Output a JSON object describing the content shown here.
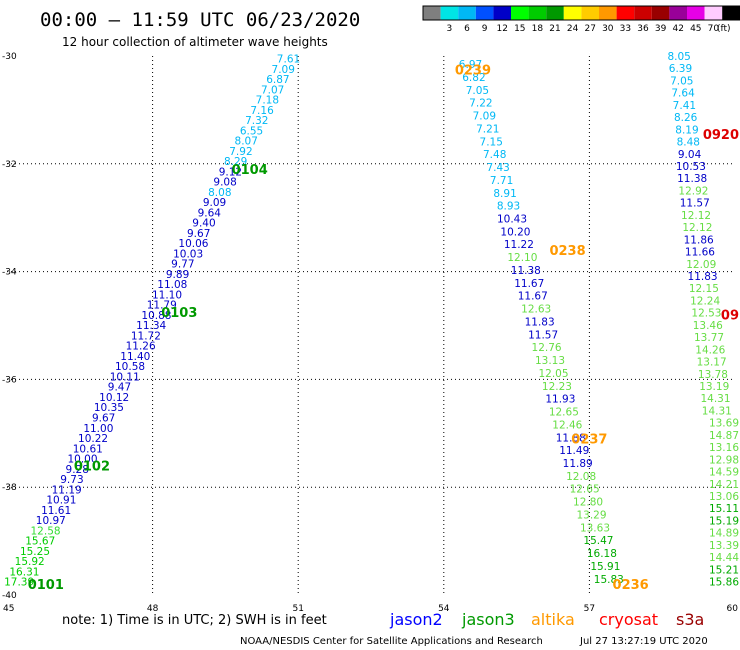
{
  "header": {
    "title": "00:00 – 11:59 UTC 06/23/2020",
    "subtitle": "12 hour collection of altimeter wave heights"
  },
  "colorbar": {
    "unit": "(ft)",
    "bins": [
      {
        "color": "#7f7f7f",
        "label": ""
      },
      {
        "color": "#00e5e5",
        "label": "3"
      },
      {
        "color": "#00b8f5",
        "label": "6"
      },
      {
        "color": "#0050ff",
        "label": "9"
      },
      {
        "color": "#0000c8",
        "label": "12"
      },
      {
        "color": "#00ff00",
        "label": "15"
      },
      {
        "color": "#00cc00",
        "label": "18"
      },
      {
        "color": "#009900",
        "label": "21"
      },
      {
        "color": "#ffff00",
        "label": "24"
      },
      {
        "color": "#ffcc00",
        "label": "27"
      },
      {
        "color": "#ff9900",
        "label": "30"
      },
      {
        "color": "#ff0000",
        "label": "33"
      },
      {
        "color": "#cc0000",
        "label": "36"
      },
      {
        "color": "#990000",
        "label": "39"
      },
      {
        "color": "#990099",
        "label": "42"
      },
      {
        "color": "#e600e6",
        "label": "45"
      },
      {
        "color": "#ffccff",
        "label": "70"
      },
      {
        "color": "#000000",
        "label": ""
      }
    ]
  },
  "legend": {
    "note": "note:  1) Time is in UTC;  2) SWH is in feet",
    "items": [
      {
        "name": "jason2",
        "color": "#0000ff"
      },
      {
        "name": "jason3",
        "color": "#009900"
      },
      {
        "name": "altika",
        "color": "#ff9900"
      },
      {
        "name": "cryosat",
        "color": "#ff0000"
      },
      {
        "name": "s3a",
        "color": "#990000"
      }
    ]
  },
  "footer": {
    "credit": "NOAA/NESDIS Center for Satellite Applications and Research",
    "timestamp": "Jul 27 13:27:19 UTC 2020"
  },
  "chart_data": {
    "type": "scatter",
    "title": "00:00 – 11:59 UTC 06/23/2020",
    "subtitle": "12 hour collection of altimeter wave heights",
    "xlabel": "",
    "ylabel": "",
    "xlim": [
      45,
      60
    ],
    "ylim": [
      -40,
      -30
    ],
    "x_ticks": [
      45,
      48,
      51,
      54,
      57,
      60
    ],
    "x_tick_labels": [
      "45",
      "48",
      "51",
      "54",
      "57",
      "60"
    ],
    "y_ticks": [
      -30,
      -32,
      -34,
      -36,
      -38,
      -40
    ],
    "y_tick_labels": [
      "-30",
      "-32",
      "-34",
      "-36",
      "-38",
      "-40"
    ],
    "grid": true,
    "tracks": [
      {
        "lat_start": -30.05,
        "lat_end": -39.75,
        "lon_start": 50.8,
        "lon_end": 45.25,
        "points": [
          {
            "v": "7.61",
            "c": "#00b8f5"
          },
          {
            "v": "7.09",
            "c": "#00b8f5"
          },
          {
            "v": "6.87",
            "c": "#00b8f5"
          },
          {
            "v": "7.07",
            "c": "#00b8f5"
          },
          {
            "v": "7.18",
            "c": "#00b8f5"
          },
          {
            "v": "7.16",
            "c": "#00b8f5"
          },
          {
            "v": "7.32",
            "c": "#00b8f5"
          },
          {
            "v": "6.55",
            "c": "#00b8f5"
          },
          {
            "v": "8.07",
            "c": "#00b8f5"
          },
          {
            "v": "7.92",
            "c": "#00b8f5"
          },
          {
            "v": "8.29",
            "c": "#00b8f5"
          },
          {
            "v": "9.12",
            "c": "#0000c8"
          },
          {
            "v": "9.08",
            "c": "#0000c8"
          },
          {
            "v": "8.08",
            "c": "#00b8f5"
          },
          {
            "v": "9.09",
            "c": "#0000c8"
          },
          {
            "v": "9.64",
            "c": "#0000c8"
          },
          {
            "v": "9.40",
            "c": "#0000c8"
          },
          {
            "v": "9.67",
            "c": "#0000c8"
          },
          {
            "v": "10.06",
            "c": "#0000c8"
          },
          {
            "v": "10.03",
            "c": "#0000c8"
          },
          {
            "v": "9.77",
            "c": "#0000c8"
          },
          {
            "v": "9.89",
            "c": "#0000c8"
          },
          {
            "v": "11.08",
            "c": "#0000c8"
          },
          {
            "v": "11.10",
            "c": "#0000c8"
          },
          {
            "v": "11.79",
            "c": "#0000c8"
          },
          {
            "v": "10.88",
            "c": "#0000c8"
          },
          {
            "v": "11.34",
            "c": "#0000c8"
          },
          {
            "v": "11.72",
            "c": "#0000c8"
          },
          {
            "v": "11.26",
            "c": "#0000c8"
          },
          {
            "v": "11.40",
            "c": "#0000c8"
          },
          {
            "v": "10.58",
            "c": "#0000c8"
          },
          {
            "v": "10.11",
            "c": "#0000c8"
          },
          {
            "v": "9.47",
            "c": "#0000c8"
          },
          {
            "v": "10.12",
            "c": "#0000c8"
          },
          {
            "v": "10.35",
            "c": "#0000c8"
          },
          {
            "v": "9.67",
            "c": "#0000c8"
          },
          {
            "v": "11.00",
            "c": "#0000c8"
          },
          {
            "v": "10.22",
            "c": "#0000c8"
          },
          {
            "v": "10.61",
            "c": "#0000c8"
          },
          {
            "v": "10.00",
            "c": "#0000c8"
          },
          {
            "v": "9.28",
            "c": "#0000c8"
          },
          {
            "v": "9.73",
            "c": "#0000c8"
          },
          {
            "v": "11.19",
            "c": "#0000c8"
          },
          {
            "v": "10.91",
            "c": "#0000c8"
          },
          {
            "v": "11.61",
            "c": "#0000c8"
          },
          {
            "v": "10.97",
            "c": "#0000c8"
          },
          {
            "v": "12.58",
            "c": "#33dd33"
          },
          {
            "v": "15.67",
            "c": "#00cc00"
          },
          {
            "v": "15.25",
            "c": "#00cc00"
          },
          {
            "v": "15.92",
            "c": "#00cc00"
          },
          {
            "v": "16.31",
            "c": "#00cc00"
          },
          {
            "v": "17.39",
            "c": "#00cc00"
          }
        ]
      },
      {
        "lat_start": -30.15,
        "lat_end": -39.7,
        "lon_start": 54.55,
        "lon_end": 57.4,
        "points": [
          {
            "v": "6.97",
            "c": "#00b8f5"
          },
          {
            "v": "6.82",
            "c": "#00b8f5"
          },
          {
            "v": "7.05",
            "c": "#00b8f5"
          },
          {
            "v": "7.22",
            "c": "#00b8f5"
          },
          {
            "v": "7.09",
            "c": "#00b8f5"
          },
          {
            "v": "7.21",
            "c": "#00b8f5"
          },
          {
            "v": "7.15",
            "c": "#00b8f5"
          },
          {
            "v": "7.48",
            "c": "#00b8f5"
          },
          {
            "v": "7.43",
            "c": "#00b8f5"
          },
          {
            "v": "7.71",
            "c": "#00b8f5"
          },
          {
            "v": "8.91",
            "c": "#00b8f5"
          },
          {
            "v": "8.93",
            "c": "#00b8f5"
          },
          {
            "v": "10.43",
            "c": "#0000c8"
          },
          {
            "v": "10.20",
            "c": "#0000c8"
          },
          {
            "v": "11.22",
            "c": "#0000c8"
          },
          {
            "v": "12.10",
            "c": "#66dd44"
          },
          {
            "v": "11.38",
            "c": "#0000c8"
          },
          {
            "v": "11.67",
            "c": "#0000c8"
          },
          {
            "v": "11.67",
            "c": "#0000c8"
          },
          {
            "v": "12.63",
            "c": "#66dd44"
          },
          {
            "v": "11.83",
            "c": "#0000c8"
          },
          {
            "v": "11.57",
            "c": "#0000c8"
          },
          {
            "v": "12.76",
            "c": "#66dd44"
          },
          {
            "v": "13.13",
            "c": "#66dd44"
          },
          {
            "v": "12.05",
            "c": "#66dd44"
          },
          {
            "v": "12.23",
            "c": "#66dd44"
          },
          {
            "v": "11.93",
            "c": "#0000c8"
          },
          {
            "v": "12.65",
            "c": "#66dd44"
          },
          {
            "v": "12.46",
            "c": "#66dd44"
          },
          {
            "v": "11.88",
            "c": "#0000c8"
          },
          {
            "v": "11.49",
            "c": "#0000c8"
          },
          {
            "v": "11.89",
            "c": "#0000c8"
          },
          {
            "v": "12.08",
            "c": "#66dd44"
          },
          {
            "v": "12.65",
            "c": "#66dd44"
          },
          {
            "v": "12.80",
            "c": "#66dd44"
          },
          {
            "v": "13.29",
            "c": "#66dd44"
          },
          {
            "v": "13.63",
            "c": "#66dd44"
          },
          {
            "v": "15.47",
            "c": "#00aa00"
          },
          {
            "v": "16.18",
            "c": "#00aa00"
          },
          {
            "v": "15.91",
            "c": "#00aa00"
          },
          {
            "v": "15.83",
            "c": "#00aa00"
          }
        ]
      },
      {
        "lat_start": -30.0,
        "lat_end": -39.75,
        "lon_start": 58.85,
        "lon_end": 60.0,
        "points": [
          {
            "v": "8.05",
            "c": "#00b8f5"
          },
          {
            "v": "6.39",
            "c": "#00b8f5"
          },
          {
            "v": "7.05",
            "c": "#00b8f5"
          },
          {
            "v": "7.64",
            "c": "#00b8f5"
          },
          {
            "v": "7.41",
            "c": "#00b8f5"
          },
          {
            "v": "8.26",
            "c": "#00b8f5"
          },
          {
            "v": "8.19",
            "c": "#00b8f5"
          },
          {
            "v": "8.48",
            "c": "#00b8f5"
          },
          {
            "v": "9.04",
            "c": "#0000c8"
          },
          {
            "v": "10.53",
            "c": "#0000c8"
          },
          {
            "v": "11.38",
            "c": "#0000c8"
          },
          {
            "v": "12.92",
            "c": "#66dd44"
          },
          {
            "v": "11.57",
            "c": "#0000c8"
          },
          {
            "v": "12.12",
            "c": "#66dd44"
          },
          {
            "v": "12.12",
            "c": "#66dd44"
          },
          {
            "v": "11.86",
            "c": "#0000c8"
          },
          {
            "v": "11.66",
            "c": "#0000c8"
          },
          {
            "v": "12.09",
            "c": "#66dd44"
          },
          {
            "v": "11.83",
            "c": "#0000c8"
          },
          {
            "v": "12.15",
            "c": "#66dd44"
          },
          {
            "v": "12.24",
            "c": "#66dd44"
          },
          {
            "v": "12.53",
            "c": "#66dd44"
          },
          {
            "v": "13.46",
            "c": "#66dd44"
          },
          {
            "v": "13.77",
            "c": "#66dd44"
          },
          {
            "v": "14.26",
            "c": "#66dd44"
          },
          {
            "v": "13.17",
            "c": "#66dd44"
          },
          {
            "v": "13.78",
            "c": "#66dd44"
          },
          {
            "v": "13.19",
            "c": "#66dd44"
          },
          {
            "v": "14.31",
            "c": "#66dd44"
          },
          {
            "v": "14.31",
            "c": "#66dd44"
          },
          {
            "v": "13.69",
            "c": "#66dd44"
          },
          {
            "v": "14.87",
            "c": "#66dd44"
          },
          {
            "v": "13.16",
            "c": "#66dd44"
          },
          {
            "v": "12.98",
            "c": "#66dd44"
          },
          {
            "v": "14.59",
            "c": "#66dd44"
          },
          {
            "v": "14.21",
            "c": "#66dd44"
          },
          {
            "v": "13.06",
            "c": "#66dd44"
          },
          {
            "v": "15.11",
            "c": "#00aa00"
          },
          {
            "v": "15.19",
            "c": "#00aa00"
          },
          {
            "v": "14.89",
            "c": "#66dd44"
          },
          {
            "v": "13.39",
            "c": "#66dd44"
          },
          {
            "v": "14.44",
            "c": "#66dd44"
          },
          {
            "v": "15.21",
            "c": "#00aa00"
          },
          {
            "v": "15.86",
            "c": "#00aa00"
          }
        ]
      }
    ],
    "time_labels": [
      {
        "text": "0104",
        "lat": -32.1,
        "lon": 50.0,
        "color": "#009900"
      },
      {
        "text": "0103",
        "lat": -34.75,
        "lon": 48.55,
        "color": "#009900"
      },
      {
        "text": "0102",
        "lat": -37.6,
        "lon": 46.75,
        "color": "#009900"
      },
      {
        "text": "0101",
        "lat": -39.8,
        "lon": 45.8,
        "color": "#009900"
      },
      {
        "text": "0239",
        "lat": -30.25,
        "lon": 54.6,
        "color": "#ff9900"
      },
      {
        "text": "0238",
        "lat": -33.6,
        "lon": 56.55,
        "color": "#ff9900"
      },
      {
        "text": "0237",
        "lat": -37.1,
        "lon": 57.0,
        "color": "#ff9900"
      },
      {
        "text": "0236",
        "lat": -39.8,
        "lon": 57.85,
        "color": "#ff9900"
      },
      {
        "text": "0920",
        "lat": -31.45,
        "lon": 59.95,
        "color": "#dd0000"
      },
      {
        "text": "09",
        "lat": -34.8,
        "lon": 60.28,
        "color": "#dd0000"
      }
    ]
  }
}
